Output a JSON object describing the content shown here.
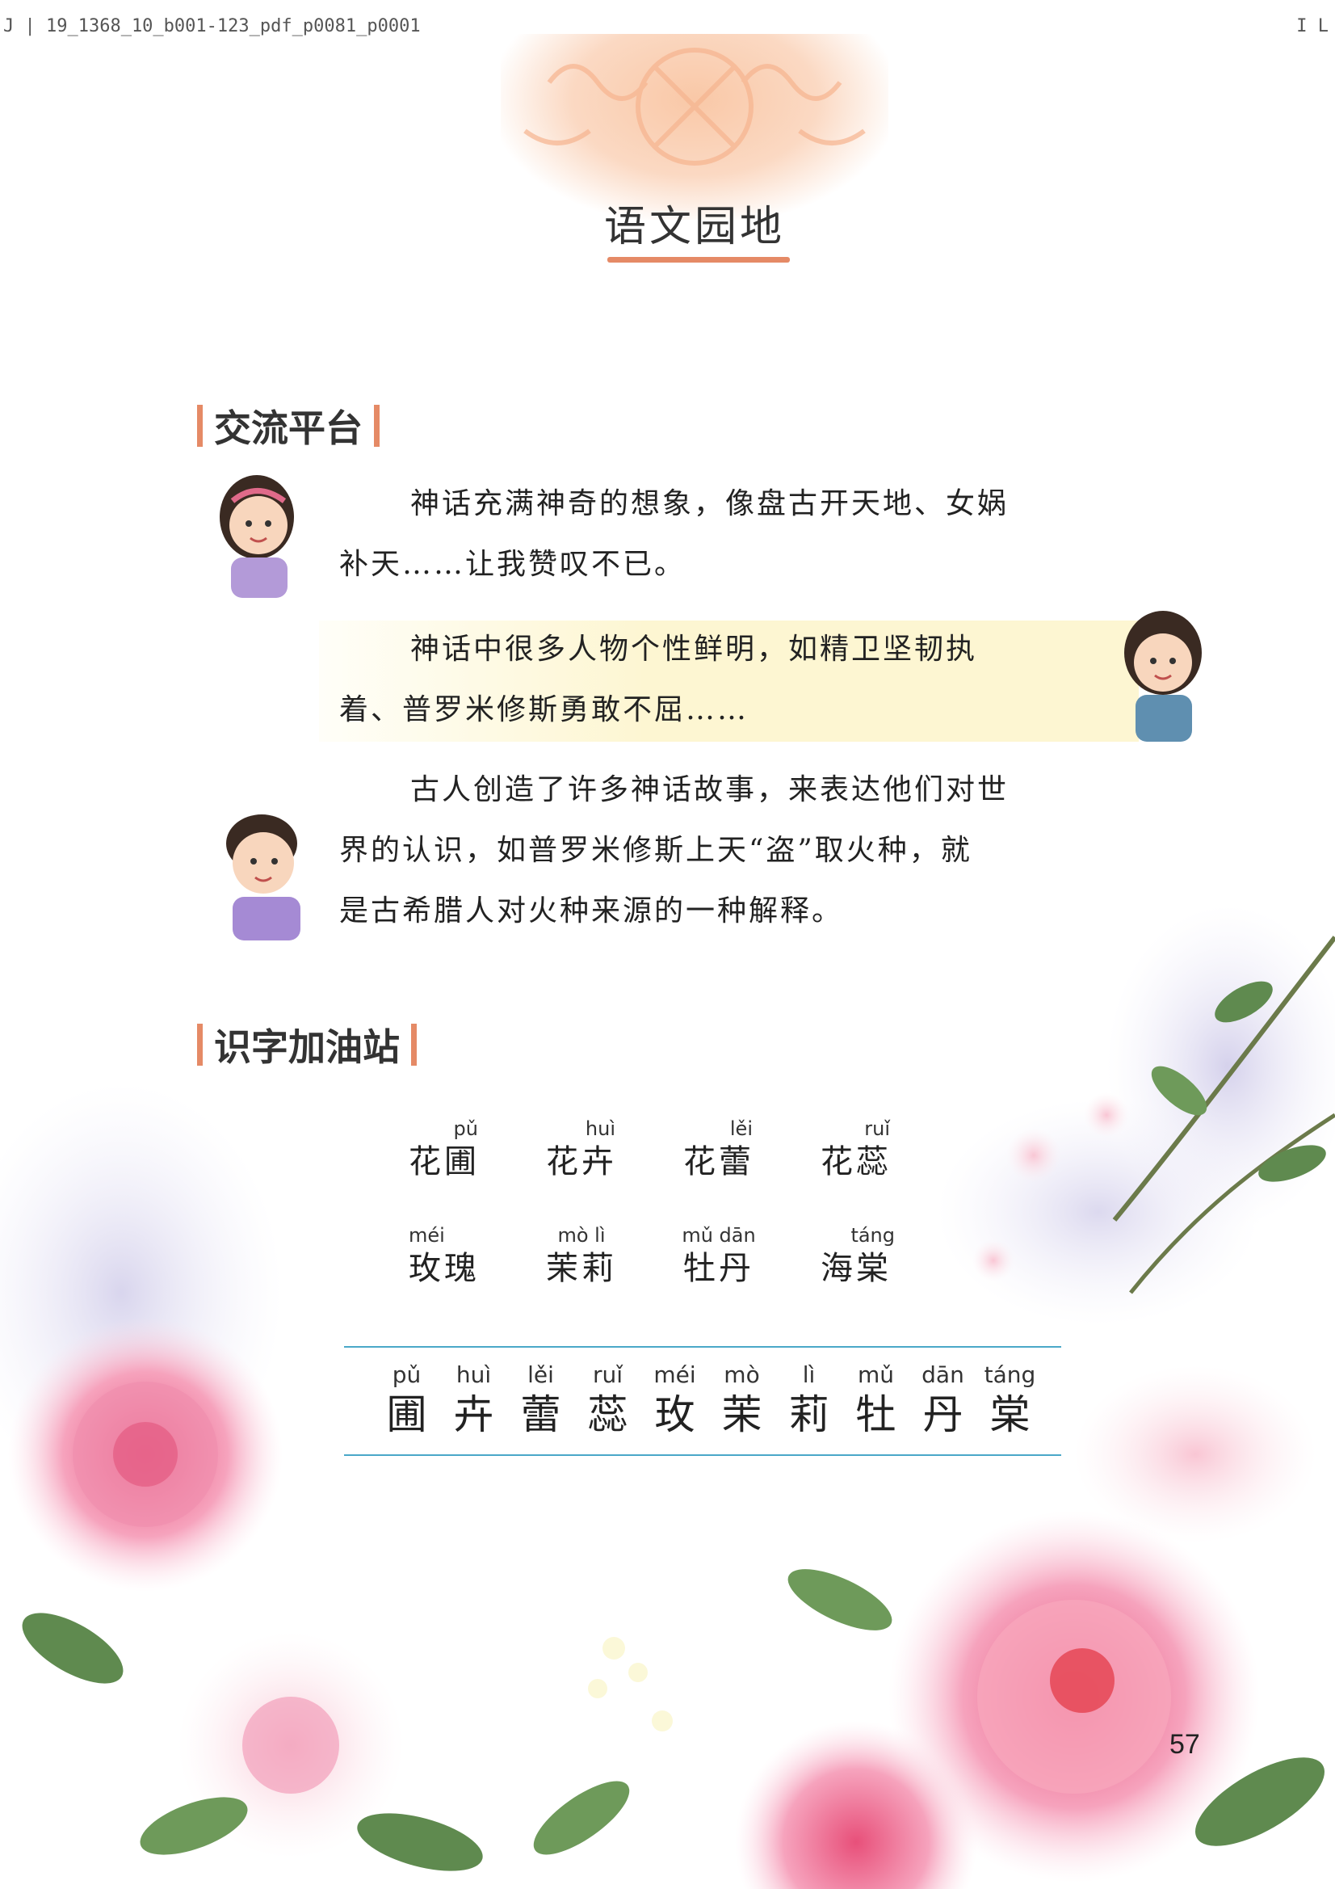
{
  "header": {
    "file_id": "J | 19_1368_10_b001-123_pdf_p0081_p0001",
    "right_mark": "I L"
  },
  "title": "语文园地",
  "exchange": {
    "heading": "交流平台",
    "paragraphs": [
      {
        "line1": "神话充满神奇的想象，像盘古开天地、女娲",
        "line2": "补天……让我赞叹不已。"
      },
      {
        "line1": "神话中很多人物个性鲜明，如精卫坚韧执",
        "line2": "着、普罗米修斯勇敢不屈……"
      },
      {
        "line1": "古人创造了许多神话故事，来表达他们对世",
        "line2": "界的认识，如普罗米修斯上天“盗”取火种，就",
        "line3": "是古希腊人对火种来源的一种解释。"
      }
    ]
  },
  "literacy": {
    "heading": "识字加油站",
    "words": [
      {
        "pinyin": "pǔ",
        "text": "花圃"
      },
      {
        "pinyin": "huì",
        "text": "花卉"
      },
      {
        "pinyin": "lěi",
        "text": "花蕾"
      },
      {
        "pinyin": "ruǐ",
        "text": "花蕊"
      },
      {
        "pinyin": "méi",
        "text": "玫瑰"
      },
      {
        "pinyin": "mò lì",
        "text": "茉莉"
      },
      {
        "pinyin": "mǔ dān",
        "text": "牡丹"
      },
      {
        "pinyin": "táng",
        "text": "海棠"
      }
    ],
    "write_chars": [
      {
        "pinyin": "pǔ",
        "char": "圃"
      },
      {
        "pinyin": "huì",
        "char": "卉"
      },
      {
        "pinyin": "lěi",
        "char": "蕾"
      },
      {
        "pinyin": "ruǐ",
        "char": "蕊"
      },
      {
        "pinyin": "méi",
        "char": "玫"
      },
      {
        "pinyin": "mò",
        "char": "茉"
      },
      {
        "pinyin": "lì",
        "char": "莉"
      },
      {
        "pinyin": "mǔ",
        "char": "牡"
      },
      {
        "pinyin": "dān",
        "char": "丹"
      },
      {
        "pinyin": "táng",
        "char": "棠"
      }
    ]
  },
  "page_number": "57",
  "colors": {
    "accent": "#e58a66",
    "rule": "#4aa8c8",
    "bubble": "#fdf6d2"
  }
}
